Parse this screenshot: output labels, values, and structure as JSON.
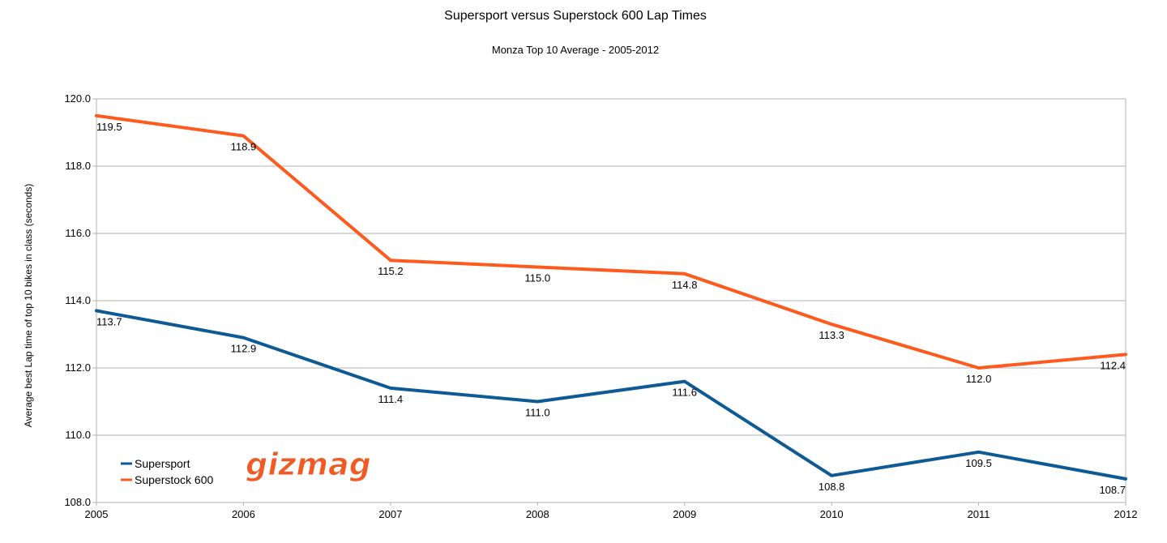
{
  "chart_data": {
    "type": "line",
    "title": "Supersport versus Superstock 600 Lap Times",
    "subtitle": "Monza Top 10 Average - 2005-2012",
    "ylabel": "Average best Lap time of top 10 bikes in class (seconds)",
    "xlabel": "",
    "x": [
      "2005",
      "2006",
      "2007",
      "2008",
      "2009",
      "2010",
      "2011",
      "2012"
    ],
    "ylim": [
      108,
      120
    ],
    "yticks": [
      "108.0",
      "110.0",
      "112.0",
      "114.0",
      "116.0",
      "118.0",
      "120.0"
    ],
    "grid": true,
    "legend_position": "bottom-left",
    "series": [
      {
        "name": "Supersport",
        "color": "#0e5a95",
        "values": [
          113.7,
          112.9,
          111.4,
          111.0,
          111.6,
          108.8,
          109.5,
          108.7
        ],
        "labels": [
          "113.7",
          "112.9",
          "111.4",
          "111.0",
          "111.6",
          "108.8",
          "109.5",
          "108.7"
        ]
      },
      {
        "name": "Superstock 600",
        "color": "#ff5a1e",
        "values": [
          119.5,
          118.9,
          115.2,
          115.0,
          114.8,
          113.3,
          112.0,
          112.4
        ],
        "labels": [
          "119.5",
          "118.9",
          "115.2",
          "115.0",
          "114.8",
          "113.3",
          "112.0",
          "112.4"
        ]
      }
    ]
  },
  "logo": {
    "text": "gizmag",
    "color": "#f15a24"
  }
}
